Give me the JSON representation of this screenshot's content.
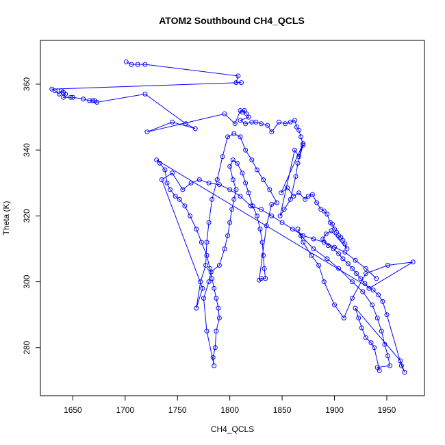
{
  "chart_data": {
    "type": "scatter",
    "title": "ATOM2 Southbound CH4_QCLS",
    "xlabel": "CH4_QCLS",
    "ylabel": "Theta (K)",
    "xlim": [
      1619,
      1986
    ],
    "ylim": [
      265.4,
      373.3
    ],
    "xticks": [
      1650,
      1700,
      1750,
      1800,
      1850,
      1900,
      1950
    ],
    "yticks": [
      280,
      300,
      320,
      340,
      360
    ],
    "grid": false,
    "legend": "none",
    "colors": {
      "series": "#0000ff",
      "axes": "#000000"
    },
    "series": [
      {
        "points": [
          [
            1701,
            366.8
          ],
          [
            1706,
            366.0
          ],
          [
            1712,
            366.0
          ],
          [
            1719,
            366.0
          ],
          [
            1808,
            362.5
          ],
          [
            1806,
            360.5
          ],
          [
            1811,
            360.5
          ],
          [
            1630,
            358.5
          ],
          [
            1633,
            358.0
          ],
          [
            1637,
            357.0
          ],
          [
            1639,
            358.0
          ],
          [
            1641,
            357.5
          ],
          [
            1643,
            357.0
          ],
          [
            1641,
            356.0
          ],
          [
            1648,
            356.0
          ],
          [
            1650,
            356.0
          ],
          [
            1660,
            355.5
          ],
          [
            1666,
            355.0
          ],
          [
            1669,
            355.0
          ],
          [
            1671,
            355.0
          ],
          [
            1673,
            354.5
          ],
          [
            1719,
            357.0
          ],
          [
            1758,
            348.0
          ],
          [
            1767,
            346.5
          ],
          [
            1745,
            348.5
          ],
          [
            1721,
            345.5
          ],
          [
            1795,
            351.0
          ],
          [
            1805,
            348.0
          ],
          [
            1810,
            352.0
          ],
          [
            1812,
            351.5
          ],
          [
            1814,
            352.0
          ],
          [
            1816,
            351.0
          ],
          [
            1818,
            350.0
          ],
          [
            1810,
            349.0
          ],
          [
            1815,
            348.0
          ],
          [
            1821,
            348.5
          ],
          [
            1825,
            348.5
          ],
          [
            1830,
            348.0
          ],
          [
            1836,
            347.5
          ],
          [
            1840,
            345.5
          ],
          [
            1847,
            348.5
          ],
          [
            1853,
            348.0
          ],
          [
            1858,
            348.5
          ],
          [
            1862,
            349.0
          ],
          [
            1864,
            347.0
          ],
          [
            1866,
            346.0
          ],
          [
            1868,
            344.0
          ],
          [
            1870,
            341.5
          ],
          [
            1865,
            336.0
          ],
          [
            1863,
            332.0
          ],
          [
            1858,
            325.0
          ],
          [
            1852,
            322.0
          ],
          [
            1848,
            320.0
          ],
          [
            1862,
            340.0
          ],
          [
            1866,
            338.0
          ],
          [
            1870,
            342.0
          ],
          [
            1849,
            327.0
          ],
          [
            1855,
            328.5
          ],
          [
            1861,
            326.0
          ],
          [
            1866,
            327.0
          ],
          [
            1872,
            325.0
          ],
          [
            1875,
            326.0
          ],
          [
            1879,
            326.5
          ],
          [
            1883,
            324.0
          ],
          [
            1887,
            322.0
          ],
          [
            1890,
            321.5
          ],
          [
            1893,
            320.5
          ],
          [
            1896,
            318.0
          ],
          [
            1898,
            317.5
          ],
          [
            1900,
            316.0
          ],
          [
            1902,
            315.0
          ],
          [
            1904,
            314.0
          ],
          [
            1906,
            313.5
          ],
          [
            1908,
            312.5
          ],
          [
            1910,
            311.5
          ],
          [
            1912,
            310.0
          ],
          [
            1897,
            315.5
          ],
          [
            1892,
            314.5
          ],
          [
            1889,
            313.0
          ],
          [
            1894,
            311.0
          ],
          [
            1899,
            310.0
          ],
          [
            1904,
            308.5
          ],
          [
            1908,
            307.0
          ],
          [
            1913,
            305.5
          ],
          [
            1917,
            304.0
          ],
          [
            1921,
            302.5
          ],
          [
            1925,
            301.0
          ],
          [
            1929,
            299.5
          ],
          [
            1933,
            298.0
          ],
          [
            1975,
            306.0
          ],
          [
            1951,
            305.0
          ],
          [
            1930,
            302.5
          ],
          [
            1917,
            295.0
          ],
          [
            1909,
            289.0
          ],
          [
            1900,
            293.0
          ],
          [
            1890,
            300.0
          ],
          [
            1885,
            305.0
          ],
          [
            1878,
            308.0
          ],
          [
            1870,
            312.0
          ],
          [
            1865,
            316.0
          ],
          [
            1868,
            314.0
          ],
          [
            1880,
            310.0
          ],
          [
            1893,
            307.0
          ],
          [
            1904,
            304.0
          ],
          [
            1917,
            300.0
          ],
          [
            1927,
            297.0
          ],
          [
            1936,
            293.0
          ],
          [
            1941,
            289.0
          ],
          [
            1945,
            285.0
          ],
          [
            1948,
            281.0
          ],
          [
            1951,
            277.5
          ],
          [
            1953,
            274.5
          ],
          [
            1941,
            274.0
          ],
          [
            1943,
            273.0
          ],
          [
            1938,
            280.0
          ],
          [
            1935,
            281.5
          ],
          [
            1930,
            283.0
          ],
          [
            1926,
            286.0
          ],
          [
            1923,
            289.0
          ],
          [
            1920,
            292.0
          ],
          [
            1963,
            276.0
          ],
          [
            1967,
            272.5
          ],
          [
            1964,
            274.5
          ],
          [
            1950,
            290.0
          ],
          [
            1946,
            294.0
          ],
          [
            1942,
            296.0
          ],
          [
            1937,
            297.5
          ],
          [
            1730,
            337.0
          ],
          [
            1733,
            336.0
          ],
          [
            1738,
            334.0
          ],
          [
            1740,
            330.0
          ],
          [
            1743,
            328.0
          ],
          [
            1748,
            326.0
          ],
          [
            1752,
            325.0
          ],
          [
            1757,
            323.0
          ],
          [
            1762,
            320.0
          ],
          [
            1768,
            316.0
          ],
          [
            1773,
            312.0
          ],
          [
            1778,
            308.0
          ],
          [
            1781,
            304.0
          ],
          [
            1783,
            301.0
          ],
          [
            1785,
            298.0
          ],
          [
            1787,
            295.0
          ],
          [
            1789,
            292.0
          ],
          [
            1790,
            289.0
          ],
          [
            1787,
            285.0
          ],
          [
            1786,
            280.0
          ],
          [
            1784,
            277.0
          ],
          [
            1785,
            274.5
          ],
          [
            1778,
            285.0
          ],
          [
            1775,
            295.0
          ],
          [
            1780,
            300.0
          ],
          [
            1782,
            303.0
          ],
          [
            1790,
            305.0
          ],
          [
            1795,
            310.0
          ],
          [
            1798,
            314.0
          ],
          [
            1800,
            318.0
          ],
          [
            1802,
            322.0
          ],
          [
            1804,
            325.0
          ],
          [
            1806,
            328.0
          ],
          [
            1803,
            331.0
          ],
          [
            1800,
            335.0
          ],
          [
            1803,
            337.0
          ],
          [
            1807,
            336.0
          ],
          [
            1812,
            333.0
          ],
          [
            1815,
            330.0
          ],
          [
            1818,
            327.0
          ],
          [
            1822,
            323.0
          ],
          [
            1826,
            320.0
          ],
          [
            1829,
            316.0
          ],
          [
            1831,
            312.0
          ],
          [
            1832,
            308.0
          ],
          [
            1833,
            304.0
          ],
          [
            1834,
            301.0
          ],
          [
            1830,
            301.0
          ],
          [
            1828,
            300.5
          ],
          [
            1835,
            317.0
          ],
          [
            1840,
            323.5
          ],
          [
            1845,
            324.0
          ],
          [
            1838,
            328.0
          ],
          [
            1832,
            331.0
          ],
          [
            1826,
            334.0
          ],
          [
            1821,
            337.0
          ],
          [
            1815,
            340.0
          ],
          [
            1810,
            344.0
          ],
          [
            1804,
            345.0
          ],
          [
            1798,
            344.0
          ],
          [
            1793,
            338.0
          ],
          [
            1788,
            331.0
          ],
          [
            1783,
            325.0
          ],
          [
            1780,
            318.0
          ],
          [
            1778,
            312.0
          ],
          [
            1777,
            305.0
          ],
          [
            1772,
            300.0
          ],
          [
            1768,
            292.0
          ],
          [
            1774,
            298.0
          ],
          [
            1735,
            331.0
          ],
          [
            1745,
            333.0
          ],
          [
            1755,
            328.0
          ],
          [
            1763,
            330.0
          ],
          [
            1771,
            331.0
          ],
          [
            1780,
            330.0
          ],
          [
            1790,
            329.5
          ],
          [
            1800,
            328.0
          ],
          [
            1810,
            326.0
          ],
          [
            1820,
            323.0
          ],
          [
            1830,
            322.0
          ],
          [
            1840,
            320.0
          ],
          [
            1850,
            318.0
          ],
          [
            1860,
            316.0
          ],
          [
            1870,
            314.0
          ],
          [
            1880,
            313.0
          ],
          [
            1890,
            312.0
          ],
          [
            1900,
            310.5
          ],
          [
            1910,
            309.0
          ],
          [
            1920,
            306.5
          ],
          [
            1930,
            304.0
          ],
          [
            1940,
            301.0
          ]
        ]
      }
    ]
  }
}
